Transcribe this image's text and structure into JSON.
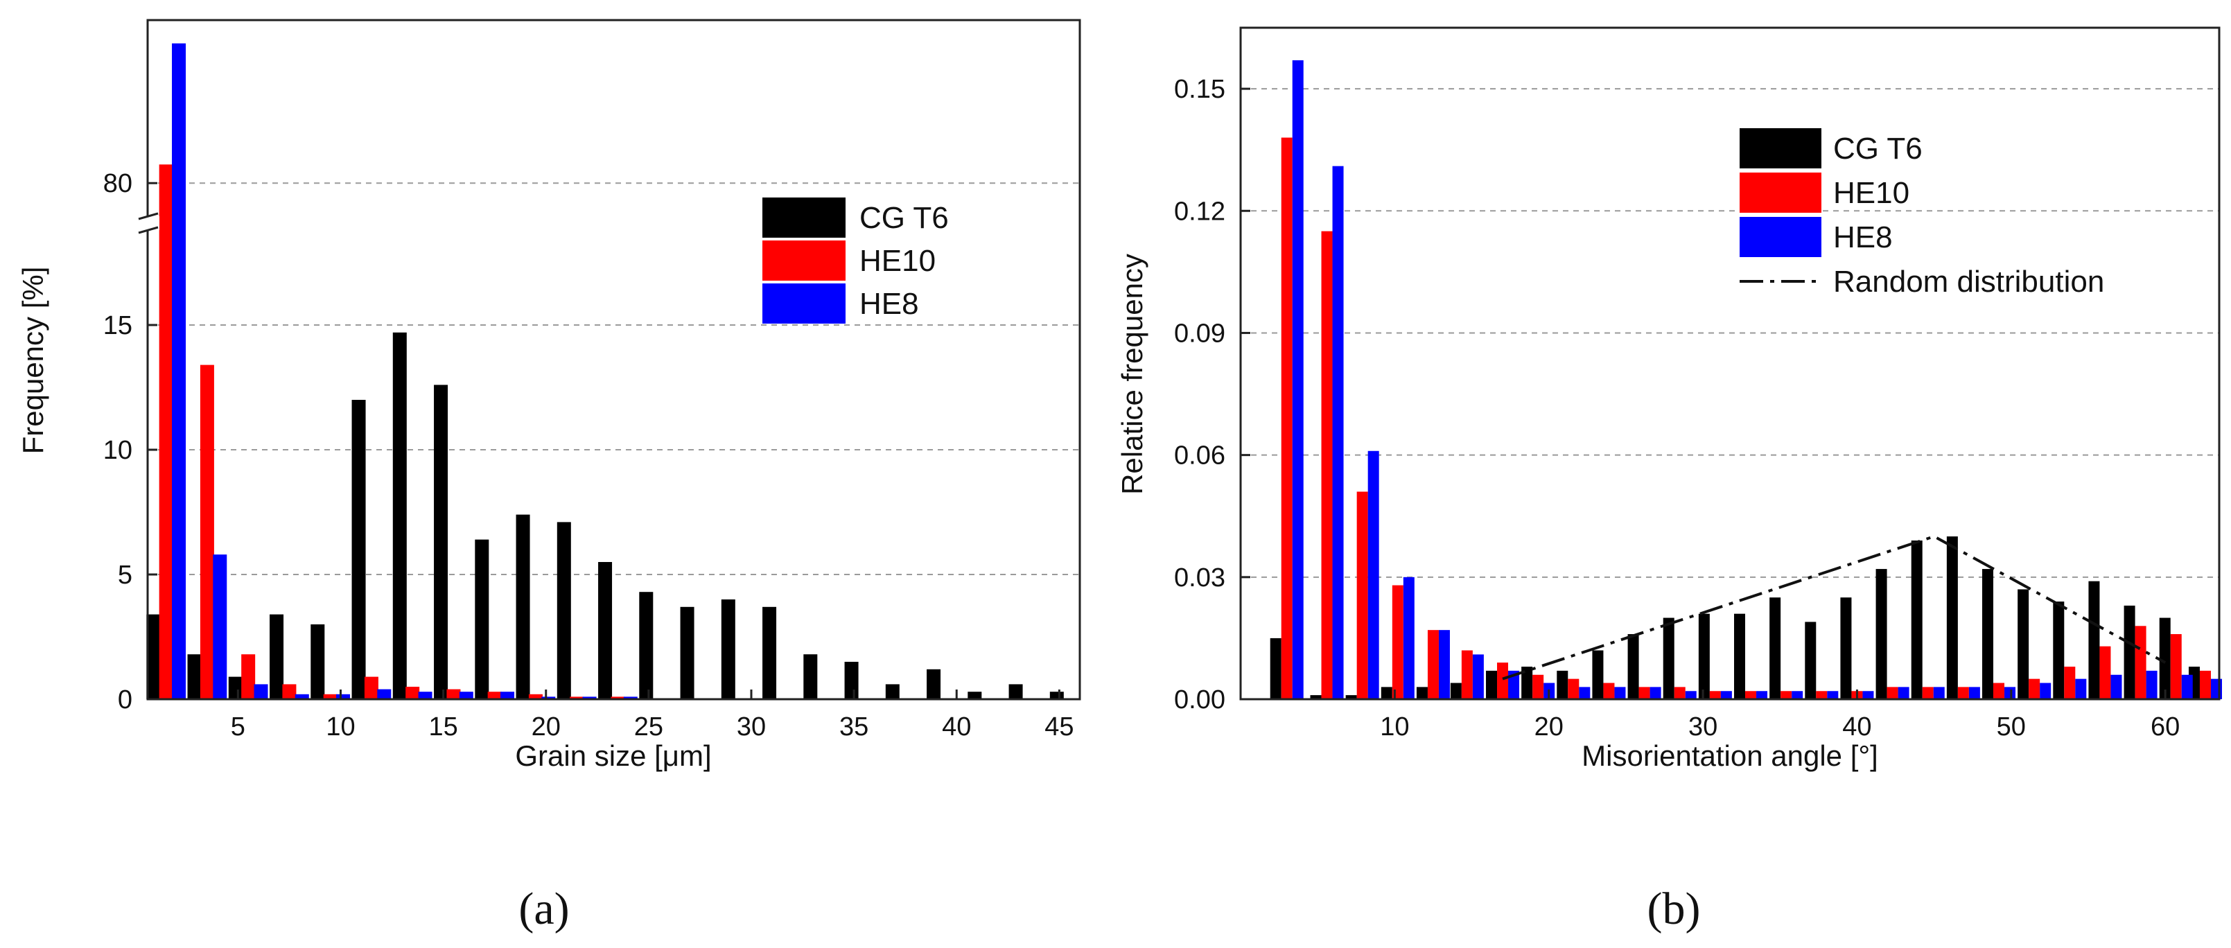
{
  "figure": {
    "captions": [
      "(a)",
      "(b)"
    ]
  },
  "chart_data": [
    {
      "type": "bar",
      "title": "",
      "xlabel": "Grain size [μm]",
      "ylabel": "Frequency [%]",
      "xlim": [
        0.6,
        46
      ],
      "ylim": [
        0,
        115
      ],
      "axis_break": {
        "from": 19,
        "to": 72
      },
      "xticks": [
        5,
        10,
        15,
        20,
        25,
        30,
        35,
        40,
        45
      ],
      "yticks": [
        0,
        5,
        10,
        15,
        80
      ],
      "grid": "horizontal dashed",
      "legend_position": "top-right",
      "x": [
        1.5,
        3.5,
        5.5,
        7.5,
        9.5,
        11.5,
        13.5,
        15.5,
        17.5,
        19.5,
        21.5,
        23.5,
        25.5,
        27.5,
        29.5,
        31.5,
        33.5,
        35.5,
        37.5,
        39.5,
        41.5,
        43.5,
        45.5
      ],
      "series": [
        {
          "name": "CG T6",
          "color": "#000000",
          "values": [
            3.4,
            1.8,
            0.9,
            3.4,
            3.0,
            12.0,
            14.7,
            12.6,
            6.4,
            7.4,
            7.1,
            5.5,
            4.3,
            3.7,
            4.0,
            3.7,
            1.8,
            1.5,
            0.6,
            1.2,
            0.3,
            0.6,
            0.3
          ]
        },
        {
          "name": "HE10",
          "color": "#ff0000",
          "values": [
            84,
            13.4,
            1.8,
            0.6,
            0.2,
            0.9,
            0.5,
            0.4,
            0.3,
            0.2,
            0.1,
            0.1,
            0,
            0,
            0,
            0,
            0,
            0,
            0,
            0,
            0,
            0,
            0
          ]
        },
        {
          "name": "HE8",
          "color": "#0000ff",
          "values": [
            110,
            5.8,
            0.6,
            0.2,
            0.2,
            0.4,
            0.3,
            0.3,
            0.3,
            0.1,
            0.1,
            0.1,
            0,
            0,
            0,
            0,
            0,
            0,
            0,
            0,
            0,
            0,
            0
          ]
        }
      ]
    },
    {
      "type": "bar",
      "title": "",
      "xlabel": "Misorientation angle [°]",
      "ylabel": "Relatice frequency",
      "xlim": [
        0,
        63.5
      ],
      "ylim": [
        0,
        0.165
      ],
      "xticks": [
        10,
        20,
        30,
        40,
        50,
        60
      ],
      "yticks": [
        "0.00",
        "0.03",
        "0.06",
        "0.09",
        "0.12",
        "0.15"
      ],
      "ytick_values": [
        0,
        0.03,
        0.06,
        0.09,
        0.12,
        0.15
      ],
      "grid": "horizontal dotted",
      "legend_position": "top-right",
      "x": [
        3,
        5.6,
        7.9,
        10.2,
        12.5,
        14.7,
        17,
        19.3,
        21.6,
        23.9,
        26.2,
        28.5,
        30.8,
        33.1,
        35.4,
        37.7,
        40,
        42.3,
        44.6,
        46.9,
        49.2,
        51.5,
        53.8,
        56.1,
        58.4,
        60.7,
        62.6
      ],
      "series": [
        {
          "name": "CG T6",
          "color": "#000000",
          "values": [
            0.015,
            0.001,
            0.001,
            0.003,
            0.003,
            0.004,
            0.007,
            0.008,
            0.007,
            0.012,
            0.016,
            0.02,
            0.021,
            0.021,
            0.025,
            0.019,
            0.025,
            0.032,
            0.039,
            0.04,
            0.032,
            0.027,
            0.024,
            0.029,
            0.023,
            0.02,
            0.008
          ]
        },
        {
          "name": "HE10",
          "color": "#ff0000",
          "values": [
            0.138,
            0.115,
            0.051,
            0.028,
            0.017,
            0.012,
            0.009,
            0.006,
            0.005,
            0.004,
            0.003,
            0.003,
            0.002,
            0.002,
            0.002,
            0.002,
            0.002,
            0.003,
            0.003,
            0.003,
            0.004,
            0.005,
            0.008,
            0.013,
            0.018,
            0.016,
            0.007
          ]
        },
        {
          "name": "HE8",
          "color": "#0000ff",
          "values": [
            0.157,
            0.131,
            0.061,
            0.03,
            0.017,
            0.011,
            0.007,
            0.004,
            0.003,
            0.003,
            0.003,
            0.002,
            0.002,
            0.002,
            0.002,
            0.002,
            0.002,
            0.003,
            0.003,
            0.003,
            0.003,
            0.004,
            0.005,
            0.006,
            0.007,
            0.006,
            0.005
          ]
        }
      ],
      "reference_line": {
        "name": "Random distribution",
        "style": "dash-dot",
        "x": [
          17,
          45,
          60
        ],
        "y": [
          0.005,
          0.04,
          0.009
        ]
      }
    }
  ]
}
